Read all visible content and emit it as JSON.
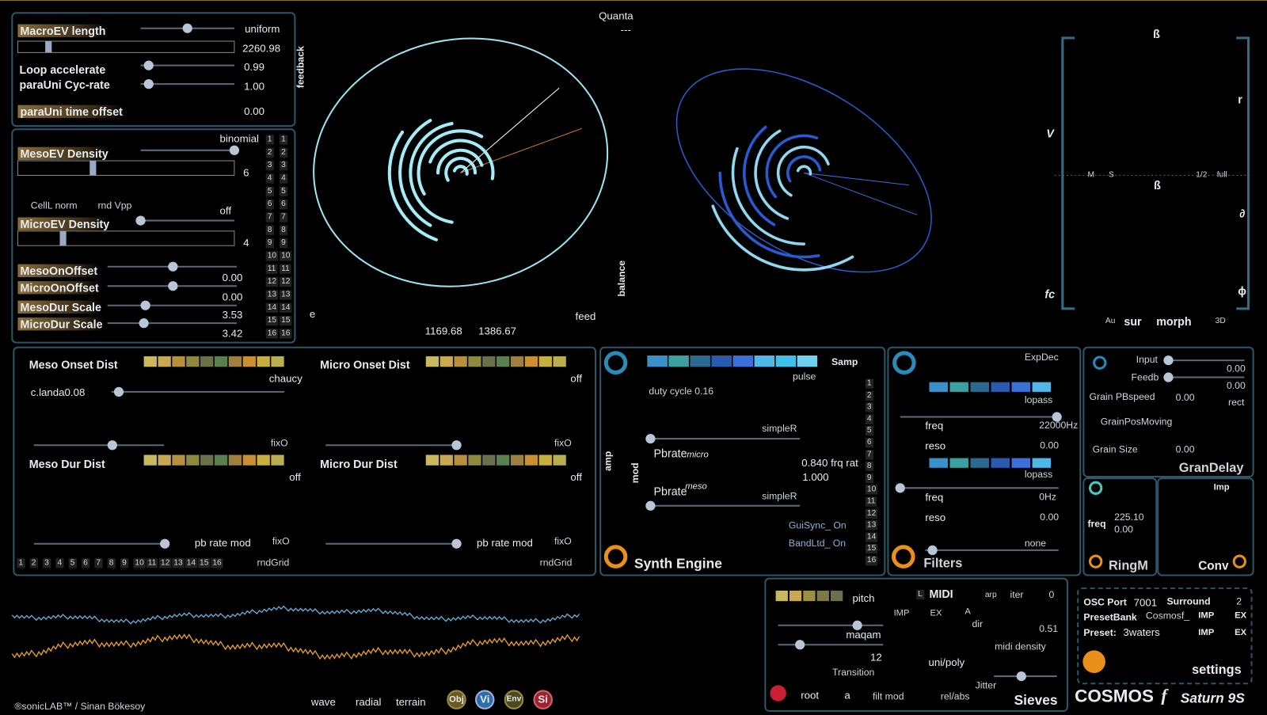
{
  "macro": {
    "length_label": "MacroEV length",
    "mode": "uniform",
    "length_value": "2260.98",
    "loop_accelerate": "Loop  accelerate",
    "loop_value": "0.99",
    "cyc_rate": "paraUni  Cyc-rate",
    "cyc_value": "1.00",
    "time_offset": "paraUni time offset",
    "offset_value": "0.00",
    "feedback": "feedback"
  },
  "density": {
    "dist": "binomial",
    "meso_density": "MesoEV   Density",
    "meso_value": "6",
    "cell_norm": "CellL norm",
    "rnd_vpp": "rnd Vpp",
    "micro_mode": "off",
    "micro_density": "MicroEV   Density",
    "micro_value": "4",
    "meso_on_offset": "MesoOnOffset",
    "meso_on_value": "0.00",
    "micro_on_offset": "MicroOnOffset",
    "micro_on_value": "0.00",
    "meso_dur": "MesoDur  Scale",
    "meso_dur_value": "3.53",
    "micro_dur": "MicroDur  Scale",
    "micro_dur_value": "3.42",
    "cells_a": [
      1,
      2,
      3,
      4,
      5,
      6,
      7,
      8,
      9,
      10,
      11,
      12,
      13,
      14,
      15,
      16
    ],
    "cells_b": [
      1,
      2,
      3,
      4,
      5,
      6,
      7,
      8,
      9,
      10,
      11,
      12,
      13,
      14,
      15,
      16
    ]
  },
  "center": {
    "quanta": "Quanta",
    "quanta_value": "---",
    "e": "e",
    "feed": "feed",
    "x_value": "1169.68",
    "y_value": "1386.67",
    "balance": "balance"
  },
  "spatial": {
    "beta_top": "ß",
    "v": "V",
    "r": "r",
    "m": "M",
    "s": "S",
    "half": "1/2",
    "full": "full",
    "beta_mid": "ß",
    "partial": "∂",
    "fc": "fc",
    "phi": "ɸ",
    "au": "Au",
    "sur": "sur",
    "morph": "morph",
    "three_d": "3D"
  },
  "dist": {
    "meso_onset": "Meso Onset Dist",
    "meso_onset_mode": "chaucy",
    "landa": "c.landa0.08",
    "fix_1": "fixO",
    "micro_onset": "Micro Onset Dist",
    "micro_onset_mode": "off",
    "fix_2": "fixO",
    "meso_dur": "Meso Dur  Dist",
    "meso_dur_mode": "off",
    "micro_dur": "Micro Dur Dist",
    "micro_dur_mode": "off",
    "pb_rate_1": "pb rate mod",
    "fix_3": "fixO",
    "rnd_grid_1": "rndGrid",
    "pb_rate_2": "pb rate mod",
    "fix_4": "fixO",
    "rnd_grid_2": "rndGrid",
    "cells": [
      1,
      2,
      3,
      4,
      5,
      6,
      7,
      8,
      9,
      10,
      11,
      12,
      13,
      14,
      15,
      16
    ]
  },
  "synth": {
    "samp": "Samp",
    "pulse": "pulse",
    "duty": "duty cycle 0.16",
    "simple_1": "simpleR",
    "pbrate_1": "Pbrate",
    "micro": "micro",
    "frq": "0.840 frq rat",
    "ratio": "1.000",
    "pbrate_2": "Pbrate",
    "meso": "meso",
    "simple_2": "simpleR",
    "gui_sync": "GuiSync_ On",
    "band_ltd": "BandLtd_ On",
    "amp": "amp",
    "mod": "mod",
    "title": "Synth Engine",
    "cells": [
      1,
      2,
      3,
      4,
      5,
      6,
      7,
      8,
      9,
      10,
      11,
      12,
      13,
      14,
      15,
      16
    ]
  },
  "filters": {
    "envelope": "ExpDec",
    "type_1": "lopass",
    "freq_1": "freq",
    "freq_value_1": "22000Hz",
    "reso_1": "reso",
    "reso_value_1": "0.00",
    "type_2": "lopass",
    "freq_2": "freq",
    "freq_value_2": "0Hz",
    "reso_2": "reso",
    "reso_value_2": "0.00",
    "mode": "none",
    "title": "Filters"
  },
  "gran_delay": {
    "input": "Input",
    "input_value": "0.00",
    "feedb": "Feedb",
    "feedb_value": "0.00",
    "pb_speed": "Grain PBspeed",
    "pb_speed_value": "0.00",
    "window": "rect",
    "pos_moving": "GrainPosMoving",
    "size": "Grain Size",
    "size_value": "0.00",
    "title": "GranDelay"
  },
  "ring_mod": {
    "freq": "freq",
    "freq_value": "225.10",
    "freq_value_2": "0.00",
    "title": "RingM"
  },
  "conv": {
    "imp": "Imp",
    "title": "Conv"
  },
  "sieves": {
    "pitch": "pitch",
    "l": "L",
    "midi": "MIDI",
    "arp": "arp",
    "iter": "iter",
    "iter_value": "0",
    "imp": "IMP",
    "ex": "EX",
    "a": "A",
    "dir": "dir",
    "dir_value": "0.51",
    "maqam": "maqam",
    "maqam_value": "12",
    "transition": "Transition",
    "midi_density": "midi density",
    "uni_poly": "uni/poly",
    "jitter": "Jitter",
    "root": "root",
    "root_value": "a",
    "filt_mod": "filt mod",
    "rel_abs": "rel/abs",
    "title": "Sieves"
  },
  "settings": {
    "osc_port": "OSC Port",
    "port_value": "7001",
    "surround": "Surround",
    "surround_value": "2",
    "preset_bank": "PresetBank",
    "bank_value": "Cosmosf_",
    "imp_1": "IMP",
    "ex_1": "EX",
    "preset": "Preset:",
    "preset_value": "3waters",
    "imp_2": "IMP",
    "ex_2": "EX",
    "settings": "settings",
    "app": "COSMOS",
    "f": "f",
    "edition": "Saturn 9S"
  },
  "footer": {
    "credit": "®sonicLAB™ / Sinan Bökesoy",
    "wave": "wave",
    "radial": "radial",
    "terrain": "terrain",
    "obj": "Obj",
    "vi": "Vi",
    "env": "Env",
    "si": "Si"
  }
}
